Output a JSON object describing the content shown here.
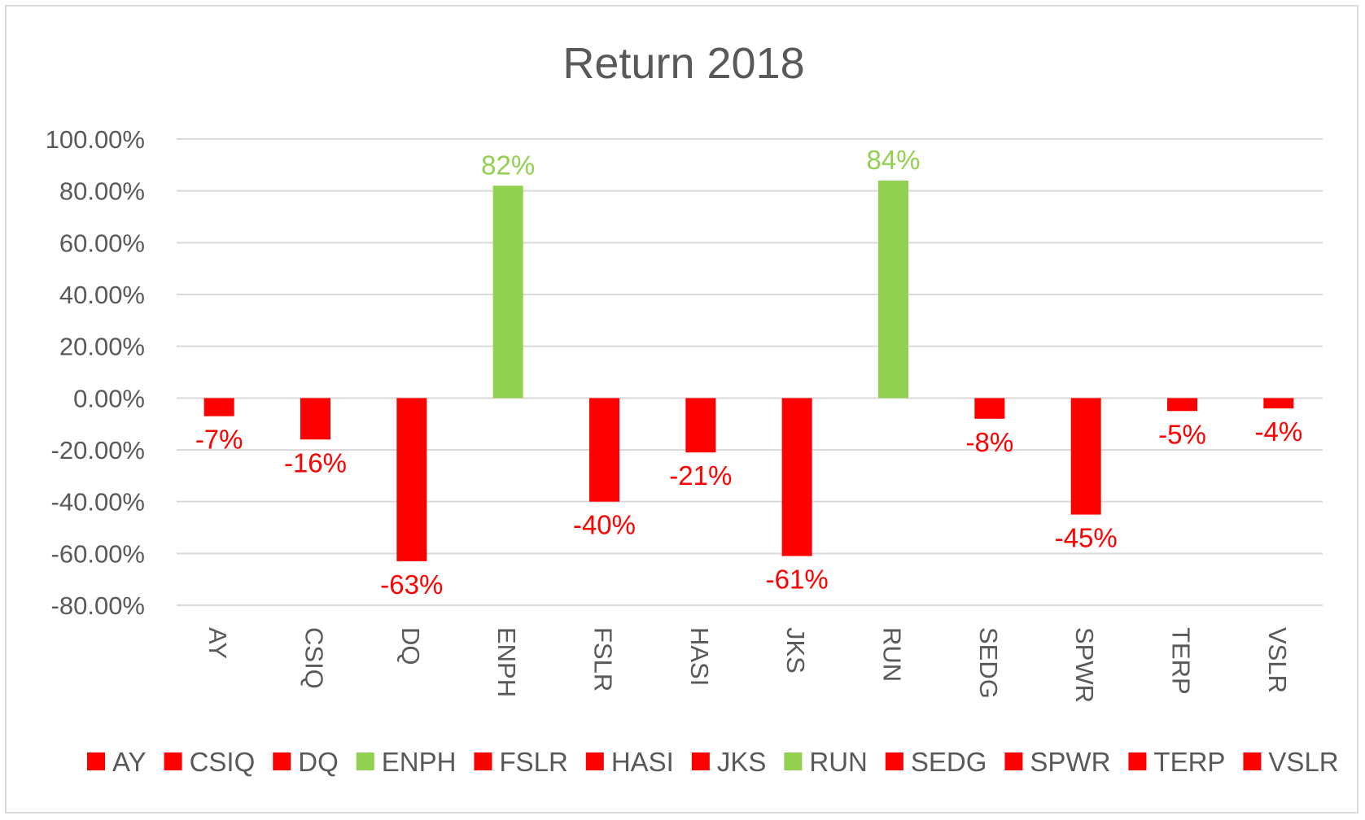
{
  "colors": {
    "positive": "#92d050",
    "negative": "#ff0000",
    "grid": "#d9d9d9",
    "text": "#595959"
  },
  "chart_data": {
    "type": "bar",
    "title": "Return 2018",
    "xlabel": "",
    "ylabel": "",
    "ylim": [
      -80,
      100
    ],
    "yticks": [
      "100.00%",
      "80.00%",
      "60.00%",
      "40.00%",
      "20.00%",
      "0.00%",
      "-20.00%",
      "-40.00%",
      "-60.00%",
      "-80.00%"
    ],
    "ytick_values": [
      100,
      80,
      60,
      40,
      20,
      0,
      -20,
      -40,
      -60,
      -80
    ],
    "grid": true,
    "legend_position": "bottom",
    "categories": [
      "AY",
      "CSIQ",
      "DQ",
      "ENPH",
      "FSLR",
      "HASI",
      "JKS",
      "RUN",
      "SEDG",
      "SPWR",
      "TERP",
      "VSLR"
    ],
    "values": [
      -7,
      -16,
      -63,
      82,
      -40,
      -21,
      -61,
      84,
      -8,
      -45,
      -5,
      -4
    ],
    "data_labels": [
      "-7%",
      "-16%",
      "-63%",
      "82%",
      "-40%",
      "-21%",
      "-61%",
      "84%",
      "-8%",
      "-45%",
      "-5%",
      "-4%"
    ]
  }
}
